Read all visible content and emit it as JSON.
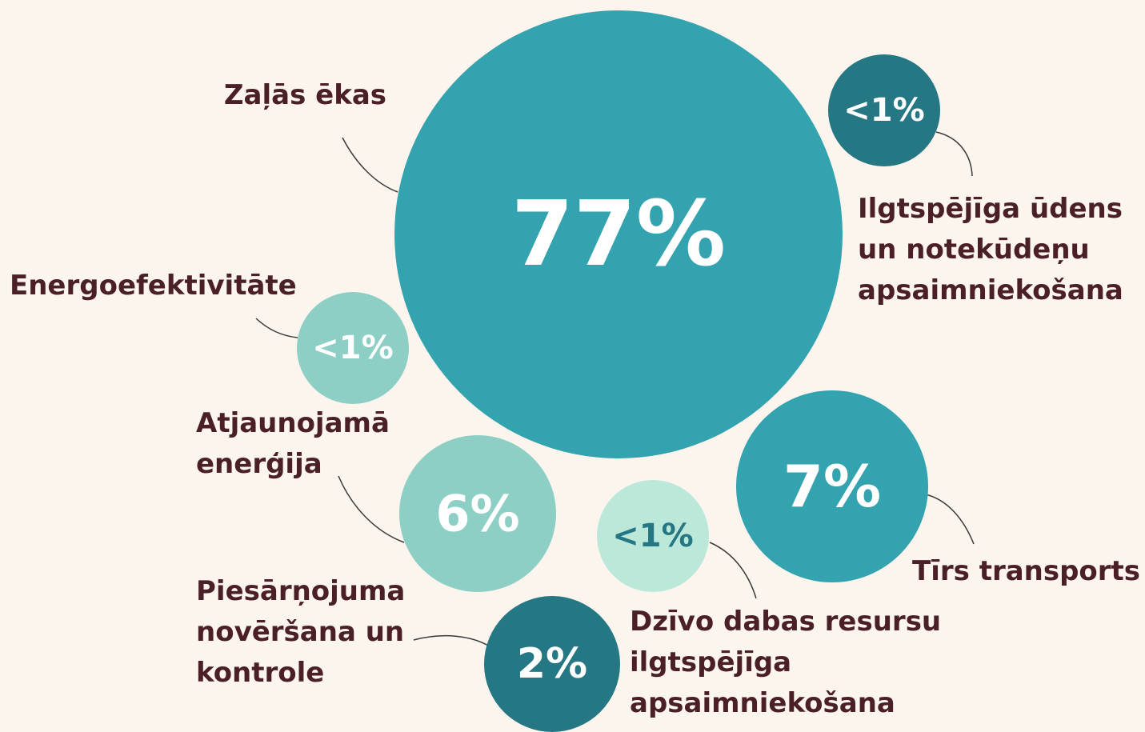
{
  "nodes": [
    {
      "value": "77%",
      "label": [
        "Zaļās ēkas"
      ],
      "color": "#33a3b0",
      "value_color": "#ffffff"
    },
    {
      "value": "<1%",
      "label": [
        "Ilgtspējīga ūdens",
        "un notekūdeņu",
        "apsaimniekošana"
      ],
      "color": "#247783",
      "value_color": "#ffffff"
    },
    {
      "value": "<1%",
      "label": [
        "Energoefektivitāte"
      ],
      "color": "#8ecfc5",
      "value_color": "#ffffff"
    },
    {
      "value": "6%",
      "label": [
        "Atjaunojamā",
        "enerģija"
      ],
      "color": "#8ecfc5",
      "value_color": "#ffffff"
    },
    {
      "value": "7%",
      "label": [
        "Tīrs transports"
      ],
      "color": "#33a3b0",
      "value_color": "#ffffff"
    },
    {
      "value": "<1%",
      "label": [
        "Dzīvo dabas resursu",
        "ilgtspējīga",
        "apsaimniekošana"
      ],
      "color": "#bce8d9",
      "value_color": "#247783"
    },
    {
      "value": "2%",
      "label": [
        "Piesārņojuma",
        "novēršana un",
        "kontrole"
      ],
      "color": "#247783",
      "value_color": "#ffffff"
    }
  ]
}
